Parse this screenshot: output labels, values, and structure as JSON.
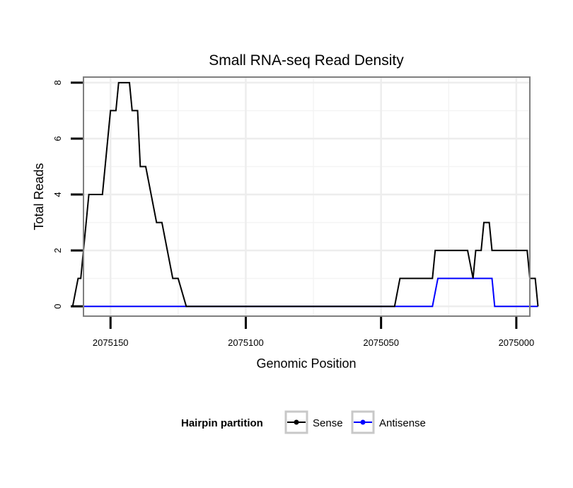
{
  "chart_data": {
    "type": "line",
    "title": "Small RNA-seq Read Density",
    "xlabel": "Genomic Position",
    "ylabel": "Total Reads",
    "x_reversed": true,
    "xlim": [
      2075160,
      2074995
    ],
    "ylim": [
      -0.35,
      8.2
    ],
    "x_ticks": [
      2075150,
      2075100,
      2075050,
      2075000
    ],
    "x_tick_labels": [
      "2075150",
      "2075100",
      "2075050",
      "2075000"
    ],
    "x_minor_gridlines": [
      2075125,
      2075075,
      2075025
    ],
    "y_ticks": [
      0,
      2,
      4,
      6,
      8
    ],
    "y_tick_labels": [
      "0",
      "2",
      "4",
      "6",
      "8"
    ],
    "y_minor_gridlines": [
      1,
      3,
      5,
      7
    ],
    "grid": true,
    "legend": {
      "title": "Hairpin partition",
      "position": "bottom",
      "entries": [
        "Sense",
        "Antisense"
      ]
    },
    "series": [
      {
        "name": "Sense",
        "color": "#000000",
        "x": [
          2075164,
          2075162,
          2075161,
          2075158,
          2075153,
          2075150,
          2075148,
          2075147,
          2075143,
          2075142,
          2075140,
          2075139,
          2075137,
          2075133,
          2075131,
          2075127,
          2075125,
          2075122,
          2075121,
          2075045,
          2075043,
          2075031,
          2075030,
          2075018,
          2075016,
          2075015,
          2075013,
          2075012,
          2075010,
          2075009,
          2075007,
          2074996,
          2074995,
          2074993,
          2074992
        ],
        "values": [
          0,
          1,
          1,
          4,
          4,
          7,
          7,
          8,
          8,
          7,
          7,
          5,
          5,
          3,
          3,
          1,
          1,
          0,
          0,
          0,
          1,
          1,
          2,
          2,
          1,
          2,
          2,
          3,
          3,
          2,
          2,
          2,
          1,
          1,
          0
        ]
      },
      {
        "name": "Antisense",
        "color": "#0000ff",
        "x": [
          2075164,
          2075031,
          2075029,
          2075009,
          2075008,
          2074992
        ],
        "values": [
          0,
          0,
          1,
          1,
          0,
          0
        ]
      }
    ]
  }
}
